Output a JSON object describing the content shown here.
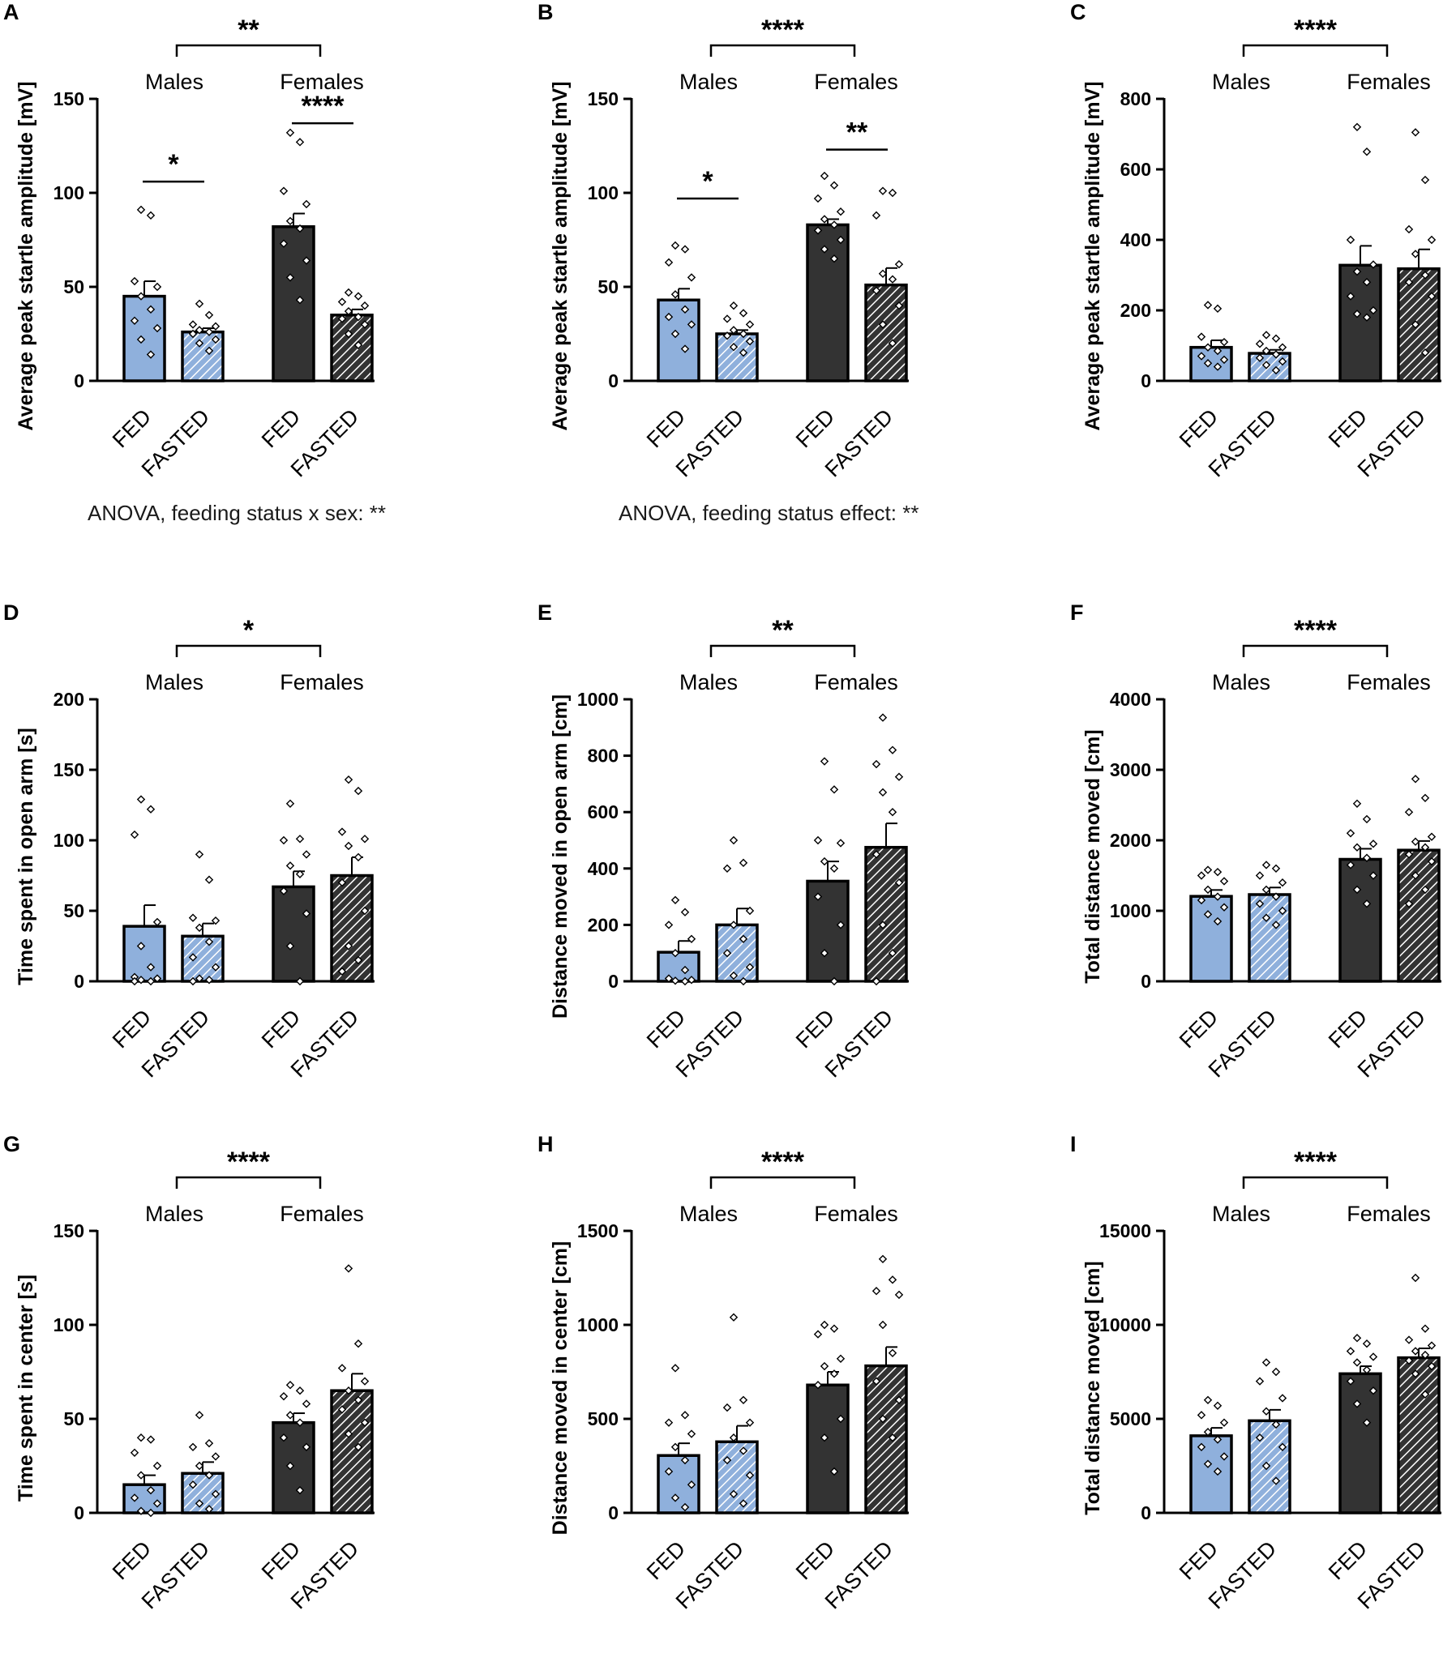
{
  "figure": {
    "colors": {
      "male_fill": "#8FB0DC",
      "female_fill": "#333333",
      "stroke": "#000000",
      "point_fill": "#ffffff"
    },
    "notes": [
      {
        "panel": "A",
        "text": "ANOVA, feeding status x sex: **"
      },
      {
        "panel": "B",
        "text": "ANOVA, feeding status effect: **"
      }
    ]
  },
  "chart_data": [
    {
      "id": "A",
      "panel_label": "A",
      "type": "bar",
      "ylabel": "Average peak startle amplitude [mV]",
      "ylim": [
        0,
        150
      ],
      "yticks": [
        0,
        50,
        100,
        150
      ],
      "groups": [
        "Males",
        "Females"
      ],
      "categories": [
        "FED",
        "FASTED",
        "FED",
        "FASTED"
      ],
      "series": [
        {
          "name": "Males FED",
          "mean": 45,
          "sem": 8,
          "points": [
            91,
            88,
            53,
            50,
            45,
            38,
            32,
            28,
            22,
            14
          ]
        },
        {
          "name": "Males FASTED",
          "mean": 26,
          "sem": 2,
          "points": [
            41,
            35,
            30,
            29,
            27,
            26,
            25,
            22,
            20,
            16
          ]
        },
        {
          "name": "Females FED",
          "mean": 82,
          "sem": 7,
          "points": [
            132,
            127,
            101,
            94,
            85,
            81,
            73,
            64,
            55,
            43
          ]
        },
        {
          "name": "Females FASTED",
          "mean": 35,
          "sem": 3,
          "points": [
            47,
            45,
            42,
            40,
            37,
            34,
            33,
            30,
            25,
            19
          ]
        }
      ],
      "top_sig": "**",
      "sig_within": [
        {
          "group": "Males",
          "label": "*",
          "value": 106
        },
        {
          "group": "Females",
          "label": "****",
          "value": 137
        }
      ]
    },
    {
      "id": "B",
      "panel_label": "B",
      "type": "bar",
      "ylabel": "Average peak startle amplitude [mV]",
      "ylim": [
        0,
        150
      ],
      "yticks": [
        0,
        50,
        100,
        150
      ],
      "groups": [
        "Males",
        "Females"
      ],
      "categories": [
        "FED",
        "FASTED",
        "FED",
        "FASTED"
      ],
      "series": [
        {
          "name": "Males FED",
          "mean": 43,
          "sem": 6,
          "points": [
            72,
            70,
            63,
            55,
            46,
            38,
            34,
            30,
            25,
            17
          ]
        },
        {
          "name": "Males FASTED",
          "mean": 25,
          "sem": 2,
          "points": [
            40,
            36,
            33,
            30,
            27,
            25,
            24,
            21,
            18,
            15
          ]
        },
        {
          "name": "Females FED",
          "mean": 83,
          "sem": 3,
          "points": [
            109,
            104,
            97,
            90,
            86,
            83,
            80,
            75,
            70,
            65
          ]
        },
        {
          "name": "Females FASTED",
          "mean": 51,
          "sem": 9,
          "points": [
            101,
            100,
            88,
            62,
            57,
            54,
            48,
            40,
            30,
            20
          ]
        }
      ],
      "top_sig": "****",
      "sig_within": [
        {
          "group": "Males",
          "label": "*",
          "value": 97
        },
        {
          "group": "Females",
          "label": "**",
          "value": 123
        }
      ]
    },
    {
      "id": "C",
      "panel_label": "C",
      "type": "bar",
      "ylabel": "Average peak startle amplitude [mV]",
      "ylim": [
        0,
        800
      ],
      "yticks": [
        0,
        200,
        400,
        600,
        800
      ],
      "groups": [
        "Males",
        "Females"
      ],
      "categories": [
        "FED",
        "FASTED",
        "FED",
        "FASTED"
      ],
      "series": [
        {
          "name": "Males FED",
          "mean": 95,
          "sem": 20,
          "points": [
            215,
            205,
            125,
            110,
            95,
            85,
            70,
            60,
            50,
            40
          ]
        },
        {
          "name": "Males FASTED",
          "mean": 78,
          "sem": 10,
          "points": [
            130,
            120,
            105,
            95,
            85,
            75,
            65,
            55,
            45,
            30
          ]
        },
        {
          "name": "Females FED",
          "mean": 328,
          "sem": 55,
          "points": [
            720,
            650,
            400,
            330,
            310,
            280,
            240,
            200,
            190,
            180
          ]
        },
        {
          "name": "Females FASTED",
          "mean": 318,
          "sem": 55,
          "points": [
            705,
            570,
            430,
            400,
            360,
            300,
            280,
            240,
            160,
            80
          ]
        }
      ],
      "top_sig": "****",
      "sig_within": []
    },
    {
      "id": "D",
      "panel_label": "D",
      "type": "bar",
      "ylabel": "Time spent in open arm [s]",
      "ylim": [
        0,
        200
      ],
      "yticks": [
        0,
        50,
        100,
        150,
        200
      ],
      "groups": [
        "Males",
        "Females"
      ],
      "categories": [
        "FED",
        "FASTED",
        "FED",
        "FASTED"
      ],
      "series": [
        {
          "name": "Males FED",
          "mean": 39,
          "sem": 15,
          "points": [
            129,
            122,
            104,
            42,
            25,
            10,
            3,
            2,
            1,
            0,
            0
          ]
        },
        {
          "name": "Males FASTED",
          "mean": 32,
          "sem": 9,
          "points": [
            90,
            72,
            45,
            43,
            38,
            28,
            17,
            10,
            2,
            1,
            0
          ]
        },
        {
          "name": "Females FED",
          "mean": 67,
          "sem": 11,
          "points": [
            126,
            101,
            100,
            90,
            82,
            76,
            64,
            48,
            25,
            0
          ]
        },
        {
          "name": "Females FASTED",
          "mean": 75,
          "sem": 13,
          "points": [
            143,
            135,
            106,
            101,
            96,
            88,
            70,
            50,
            25,
            15,
            7
          ]
        }
      ],
      "top_sig": "*",
      "sig_within": []
    },
    {
      "id": "E",
      "panel_label": "E",
      "type": "bar",
      "ylabel": "Distance moved in open arm [cm]",
      "ylim": [
        0,
        1000
      ],
      "yticks": [
        0,
        200,
        400,
        600,
        800,
        1000
      ],
      "groups": [
        "Males",
        "Females"
      ],
      "categories": [
        "FED",
        "FASTED",
        "FED",
        "FASTED"
      ],
      "series": [
        {
          "name": "Males FED",
          "mean": 103,
          "sem": 40,
          "points": [
            288,
            245,
            200,
            150,
            100,
            40,
            10,
            5,
            2,
            0
          ]
        },
        {
          "name": "Males FASTED",
          "mean": 200,
          "sem": 58,
          "points": [
            500,
            420,
            400,
            250,
            200,
            150,
            100,
            50,
            20,
            0
          ]
        },
        {
          "name": "Females FED",
          "mean": 355,
          "sem": 70,
          "points": [
            780,
            680,
            500,
            490,
            425,
            400,
            300,
            200,
            100,
            0
          ]
        },
        {
          "name": "Females FASTED",
          "mean": 475,
          "sem": 85,
          "points": [
            935,
            820,
            770,
            725,
            670,
            600,
            450,
            350,
            200,
            100,
            0
          ]
        }
      ],
      "top_sig": "**",
      "sig_within": []
    },
    {
      "id": "F",
      "panel_label": "F",
      "type": "bar",
      "ylabel": "Total distance moved [cm]",
      "ylim": [
        0,
        4000
      ],
      "yticks": [
        0,
        1000,
        2000,
        3000,
        4000
      ],
      "groups": [
        "Males",
        "Females"
      ],
      "categories": [
        "FED",
        "FASTED",
        "FED",
        "FASTED"
      ],
      "series": [
        {
          "name": "Males FED",
          "mean": 1205,
          "sem": 90,
          "points": [
            1580,
            1550,
            1500,
            1420,
            1300,
            1200,
            1150,
            1050,
            950,
            850
          ]
        },
        {
          "name": "Males FASTED",
          "mean": 1230,
          "sem": 100,
          "points": [
            1650,
            1600,
            1500,
            1400,
            1300,
            1200,
            1100,
            1000,
            900,
            800
          ]
        },
        {
          "name": "Females FED",
          "mean": 1730,
          "sem": 150,
          "points": [
            2520,
            2300,
            2100,
            1950,
            1900,
            1750,
            1650,
            1500,
            1300,
            1100
          ]
        },
        {
          "name": "Females FASTED",
          "mean": 1860,
          "sem": 130,
          "points": [
            2870,
            2600,
            2400,
            2050,
            1980,
            1900,
            1800,
            1700,
            1500,
            1300,
            1100
          ]
        }
      ],
      "top_sig": "****",
      "sig_within": []
    },
    {
      "id": "G",
      "panel_label": "G",
      "type": "bar",
      "ylabel": "Time spent in center [s]",
      "ylim": [
        0,
        150
      ],
      "yticks": [
        0,
        50,
        100,
        150
      ],
      "groups": [
        "Males",
        "Females"
      ],
      "categories": [
        "FED",
        "FASTED",
        "FED",
        "FASTED"
      ],
      "series": [
        {
          "name": "Males FED",
          "mean": 15,
          "sem": 5,
          "points": [
            40,
            39,
            32,
            25,
            20,
            12,
            8,
            5,
            1,
            0
          ]
        },
        {
          "name": "Males FASTED",
          "mean": 21,
          "sem": 6,
          "points": [
            52,
            37,
            35,
            30,
            25,
            20,
            15,
            10,
            5,
            2
          ]
        },
        {
          "name": "Females FED",
          "mean": 48,
          "sem": 5,
          "points": [
            68,
            65,
            62,
            58,
            52,
            48,
            40,
            35,
            25,
            12
          ]
        },
        {
          "name": "Females FASTED",
          "mean": 65,
          "sem": 9,
          "points": [
            130,
            90,
            77,
            70,
            65,
            60,
            55,
            48,
            42,
            35
          ]
        }
      ],
      "top_sig": "****",
      "sig_within": []
    },
    {
      "id": "H",
      "panel_label": "H",
      "type": "bar",
      "ylabel": "Distance moved in center [cm]",
      "ylim": [
        0,
        1500
      ],
      "yticks": [
        0,
        500,
        1000,
        1500
      ],
      "groups": [
        "Males",
        "Females"
      ],
      "categories": [
        "FED",
        "FASTED",
        "FED",
        "FASTED"
      ],
      "series": [
        {
          "name": "Males FED",
          "mean": 305,
          "sem": 65,
          "points": [
            770,
            520,
            480,
            420,
            350,
            280,
            220,
            150,
            80,
            30
          ]
        },
        {
          "name": "Males FASTED",
          "mean": 378,
          "sem": 85,
          "points": [
            1040,
            600,
            560,
            480,
            400,
            330,
            280,
            200,
            100,
            50
          ]
        },
        {
          "name": "Females FED",
          "mean": 680,
          "sem": 70,
          "points": [
            1000,
            980,
            950,
            820,
            780,
            740,
            680,
            500,
            400,
            220
          ]
        },
        {
          "name": "Females FASTED",
          "mean": 782,
          "sem": 100,
          "points": [
            1350,
            1240,
            1180,
            1160,
            1000,
            850,
            700,
            600,
            500,
            400
          ]
        }
      ],
      "top_sig": "****",
      "sig_within": []
    },
    {
      "id": "I",
      "panel_label": "I",
      "type": "bar",
      "ylabel": "Total distance moved [cm]",
      "ylim": [
        0,
        15000
      ],
      "yticks": [
        0,
        5000,
        10000,
        15000
      ],
      "groups": [
        "Males",
        "Females"
      ],
      "categories": [
        "FED",
        "FASTED",
        "FED",
        "FASTED"
      ],
      "series": [
        {
          "name": "Males FED",
          "mean": 4100,
          "sem": 420,
          "points": [
            6000,
            5700,
            5200,
            4800,
            4300,
            3900,
            3500,
            3000,
            2600,
            2200
          ]
        },
        {
          "name": "Males FASTED",
          "mean": 4900,
          "sem": 580,
          "points": [
            8000,
            7500,
            7000,
            6100,
            5400,
            4700,
            4000,
            3500,
            2500,
            1700
          ]
        },
        {
          "name": "Females FED",
          "mean": 7400,
          "sem": 400,
          "points": [
            9300,
            9000,
            8600,
            8300,
            8000,
            7600,
            7000,
            6500,
            5800,
            4800
          ]
        },
        {
          "name": "Females FASTED",
          "mean": 8250,
          "sem": 500,
          "points": [
            12500,
            9800,
            9200,
            8900,
            8600,
            8400,
            8100,
            7800,
            7400,
            6300
          ]
        }
      ],
      "top_sig": "****",
      "sig_within": []
    }
  ]
}
